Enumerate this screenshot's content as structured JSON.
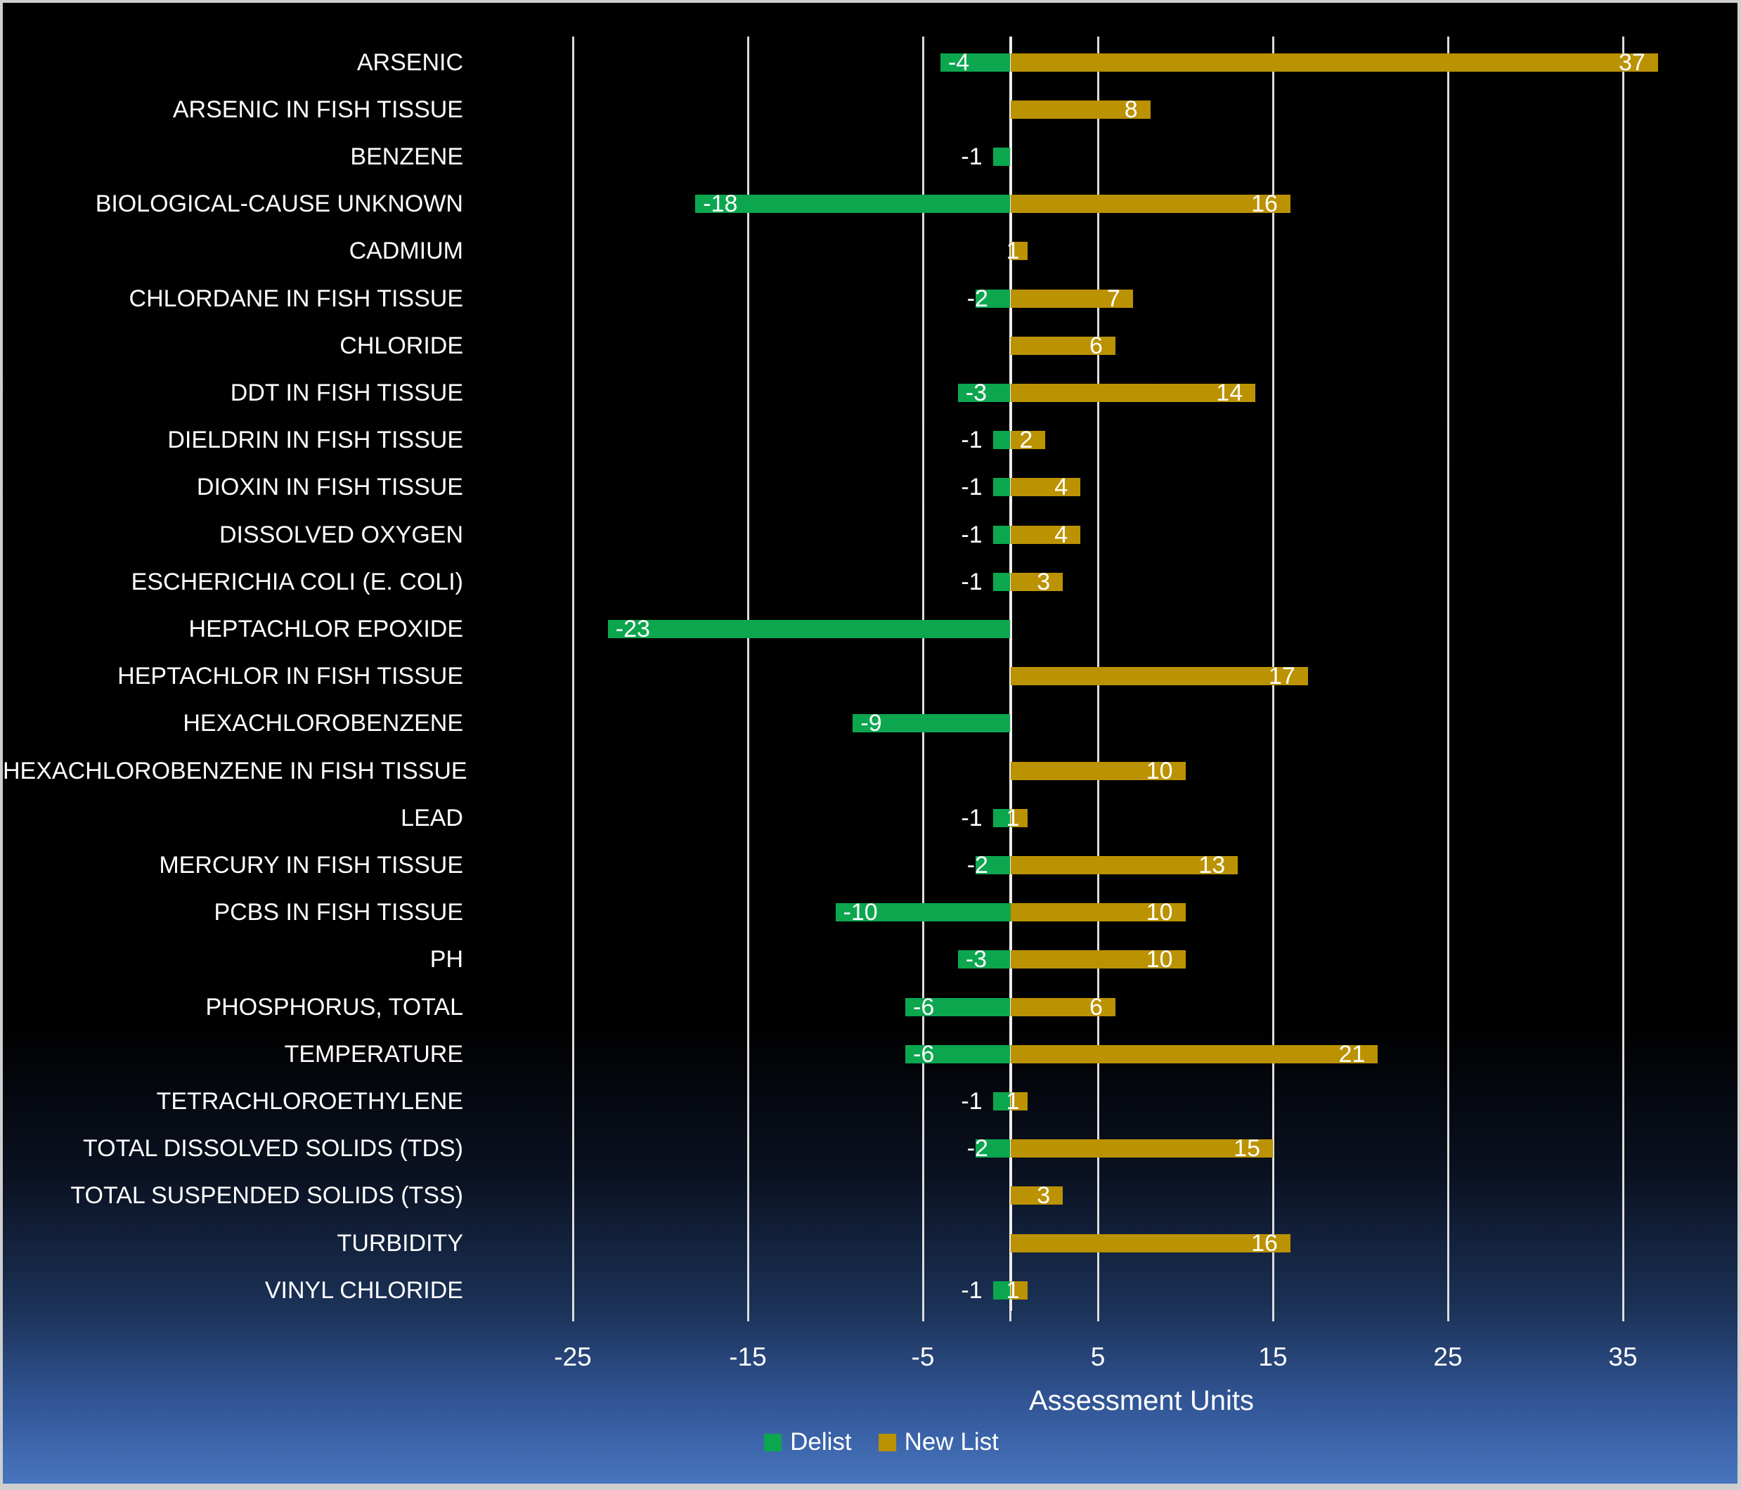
{
  "chart_data": {
    "type": "bar",
    "orientation": "horizontal",
    "title": "",
    "xlabel": "Assessment Units",
    "ylabel": "",
    "xlim": [
      -30,
      41.9
    ],
    "x_gridlines": [
      -25,
      -15,
      -5,
      5,
      15,
      25,
      35
    ],
    "x_tick_marks": [
      -25,
      -15,
      -5,
      0,
      5,
      15,
      25,
      35
    ],
    "x_tick_labels": [
      "-25",
      "-15",
      "-5",
      "5",
      "15",
      "25",
      "35"
    ],
    "grid": true,
    "categories": [
      "ARSENIC",
      "ARSENIC IN FISH TISSUE",
      "BENZENE",
      "BIOLOGICAL-CAUSE UNKNOWN",
      "CADMIUM",
      "CHLORDANE IN FISH TISSUE",
      "CHLORIDE",
      "DDT IN FISH TISSUE",
      "DIELDRIN IN FISH TISSUE",
      "DIOXIN IN FISH TISSUE",
      "DISSOLVED OXYGEN",
      "ESCHERICHIA COLI (E. COLI)",
      "HEPTACHLOR EPOXIDE",
      "HEPTACHLOR IN FISH TISSUE",
      "HEXACHLOROBENZENE",
      "HEXACHLOROBENZENE IN FISH TISSUE",
      "LEAD",
      "MERCURY IN FISH TISSUE",
      "PCBS IN FISH TISSUE",
      "PH",
      "PHOSPHORUS, TOTAL",
      "TEMPERATURE",
      "TETRACHLOROETHYLENE",
      "TOTAL DISSOLVED SOLIDS (TDS)",
      "TOTAL SUSPENDED SOLIDS (TSS)",
      "TURBIDITY",
      "VINYL CHLORIDE"
    ],
    "series": [
      {
        "name": "Delist",
        "color": "#0CA64F",
        "values": [
          -4,
          null,
          -1,
          -18,
          null,
          -2,
          null,
          -3,
          -1,
          -1,
          -1,
          -1,
          -23,
          null,
          -9,
          null,
          -1,
          -2,
          -10,
          -3,
          -6,
          -6,
          -1,
          -2,
          null,
          null,
          -1
        ]
      },
      {
        "name": "New List",
        "color": "#BB9202",
        "values": [
          37,
          8,
          null,
          16,
          1,
          7,
          6,
          14,
          2,
          4,
          4,
          3,
          null,
          17,
          null,
          10,
          1,
          13,
          10,
          10,
          6,
          21,
          1,
          15,
          3,
          16,
          1
        ]
      }
    ],
    "legend": {
      "position": "bottom",
      "entries": [
        {
          "label": "Delist",
          "color": "#0CA64F"
        },
        {
          "label": "New List",
          "color": "#BB9202"
        }
      ]
    },
    "colors": {
      "background_top": "#000000",
      "background_bottom": "#4875BF",
      "gridline": "#DCDCDC",
      "text": "#FFFFFF"
    }
  }
}
